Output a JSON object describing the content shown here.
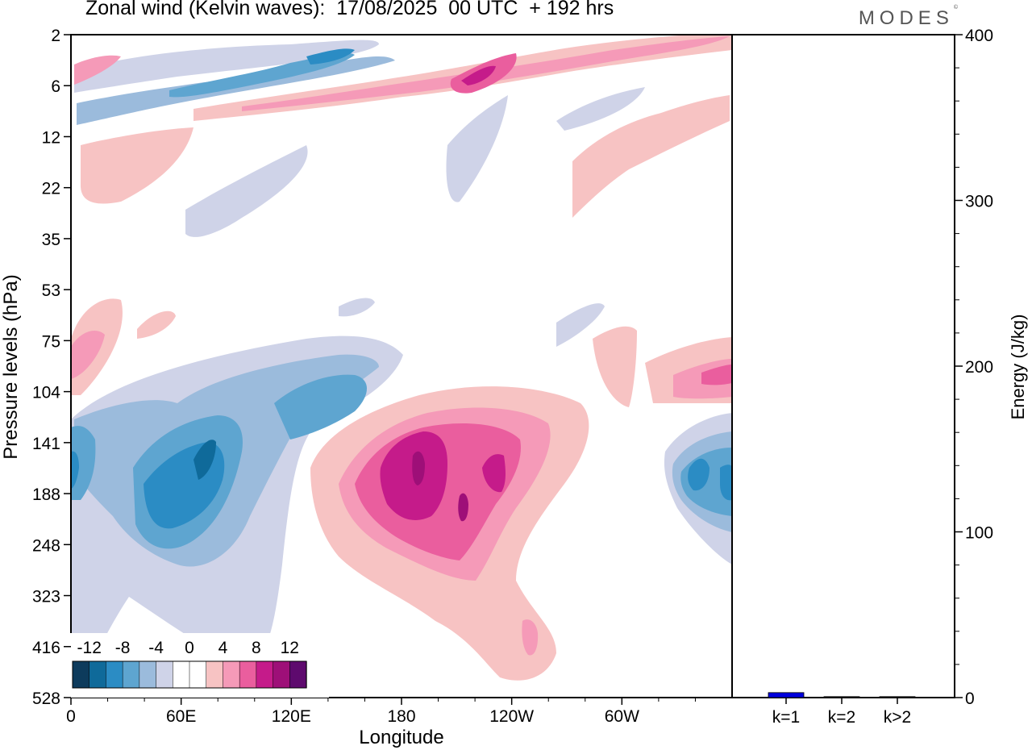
{
  "header": {
    "title": "Zonal wind (Kelvin waves):  17/08/2025  00 UTC  + 192 hrs",
    "brand": "MODES",
    "brand_mark": "©"
  },
  "chart_data": [
    {
      "type": "heatmap",
      "title": "Zonal wind (Kelvin waves):  17/08/2025  00 UTC  + 192 hrs",
      "xlabel": "Longitude",
      "ylabel": "Pressure levels (hPa)",
      "x_ticks": [
        "0",
        "60E",
        "120E",
        "180",
        "120W",
        "60W"
      ],
      "y_ticks": [
        "2",
        "6",
        "12",
        "22",
        "35",
        "53",
        "75",
        "104",
        "141",
        "188",
        "248",
        "323",
        "416",
        "528"
      ],
      "y_scale": "log-pressure (top 2 hPa, bottom 528 hPa)",
      "grid": false,
      "colorbar": {
        "placement": "bottom-left",
        "tick_labels": [
          "-12",
          "-8",
          "-4",
          "0",
          "4",
          "8",
          "12"
        ],
        "colors": [
          "#0d3b5c",
          "#0f6a9a",
          "#2b8cc4",
          "#5ea5d0",
          "#9bbbdc",
          "#cfd3e8",
          "#ffffff",
          "#ffffff",
          "#f7c3c3",
          "#f59ab8",
          "#ea5e9e",
          "#c51b8a",
          "#9e0f78",
          "#5e0a6e"
        ]
      },
      "features": [
        {
          "kind": "positive-max",
          "lon": 185,
          "pressure": 160,
          "value": 12
        },
        {
          "kind": "negative-max",
          "lon": 72,
          "pressure": 165,
          "value": -10
        },
        {
          "kind": "negative-max",
          "lon": 355,
          "pressure": 175,
          "value": -10
        }
      ]
    },
    {
      "type": "bar",
      "categories": [
        "k=1",
        "k=2",
        "k>2"
      ],
      "values": [
        3,
        0.3,
        0.5
      ],
      "ylabel": "Energy (J/kg)",
      "y_ticks": [
        "0",
        "100",
        "200",
        "300",
        "400"
      ],
      "ylim": [
        0,
        400
      ],
      "bar_colors": [
        "#0000dd",
        "#000000",
        "#000000"
      ]
    }
  ]
}
